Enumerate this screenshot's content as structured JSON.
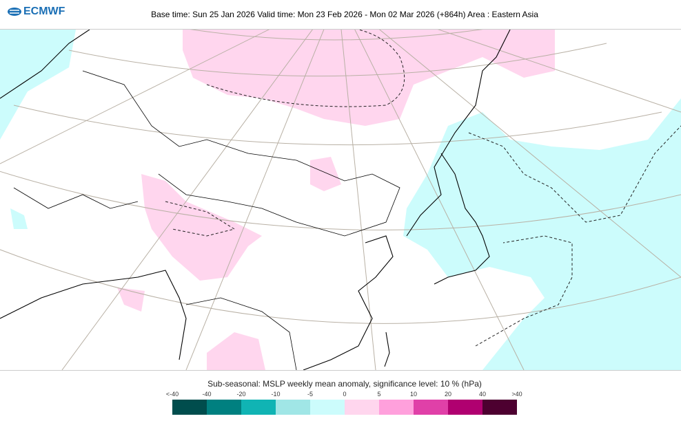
{
  "logo": "ECMWF",
  "header": {
    "title": "Base time: Sun 25 Jan 2026 Valid time: Mon 23 Feb 2026 - Mon 02 Mar 2026 (+864h) Area : Eastern Asia"
  },
  "legend": {
    "title": "Sub-seasonal: MSLP weekly mean anomaly, significance level: 10 % (hPa)",
    "ticks": [
      "<-40",
      "-40",
      "-20",
      "-10",
      "-5",
      "0",
      "5",
      "10",
      "20",
      "40",
      ">40"
    ],
    "colors": [
      "#004d4d",
      "#008080",
      "#10b4b4",
      "#a0e6e6",
      "#ccfcfc",
      "#ffd6ee",
      "#ffa0dc",
      "#e040a8",
      "#b00070",
      "#4d0030"
    ]
  }
}
